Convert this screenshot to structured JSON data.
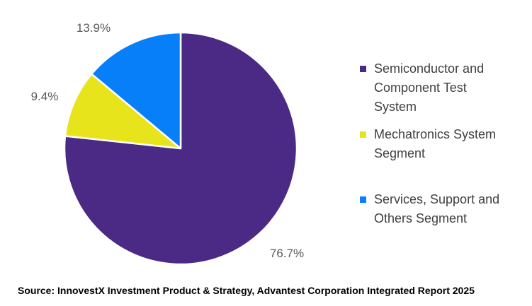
{
  "chart_data": {
    "type": "pie",
    "title": "",
    "legend_position": "right",
    "start_angle_deg": 0,
    "direction": "clockwise",
    "gap_color": "#FFFFFF",
    "label_color": "#595959",
    "categories": [
      "Semiconductor and Component Test System",
      "Mechatronics System Segment",
      "Services, Support and Others Segment"
    ],
    "values": [
      76.7,
      9.4,
      13.9
    ],
    "slices": [
      {
        "label": "Semiconductor and Component Test System",
        "value": 76.7,
        "pct_label": "76.7%",
        "color": "#4A2A85",
        "legend_lines": [
          "Semiconductor and",
          "Component Test",
          "System"
        ]
      },
      {
        "label": "Mechatronics System Segment",
        "value": 9.4,
        "pct_label": "9.4%",
        "color": "#E8E41B",
        "legend_lines": [
          "Mechatronics System",
          "Segment"
        ]
      },
      {
        "label": "Services, Support and Others Segment",
        "value": 13.9,
        "pct_label": "13.9%",
        "color": "#077FF8",
        "legend_lines": [
          "Services, Support and",
          "Others Segment"
        ]
      }
    ]
  },
  "source_note": "Source: InnovestX Investment Product & Strategy, Advantest Corporation Integrated Report 2025"
}
